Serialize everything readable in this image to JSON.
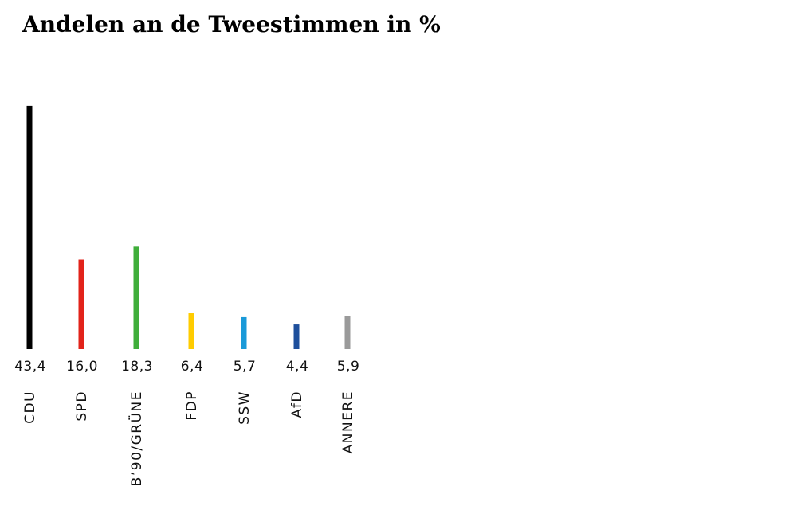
{
  "chart_data": {
    "type": "bar",
    "title": "Andelen an de Tweestimmen in %",
    "categories": [
      "CDU",
      "SPD",
      "B’90/GRÜNE",
      "FDP",
      "SSW",
      "AfD",
      "ANNERE"
    ],
    "values": [
      43.4,
      16.0,
      18.3,
      6.4,
      5.7,
      4.4,
      5.9
    ],
    "value_labels": [
      "43,4",
      "16,0",
      "18,3",
      "6,4",
      "5,7",
      "4,4",
      "5,9"
    ],
    "colors": [
      "#000000",
      "#e2231a",
      "#3fae3a",
      "#ffcc00",
      "#1a9ad9",
      "#1e4f9c",
      "#9a9a9a"
    ]
  }
}
